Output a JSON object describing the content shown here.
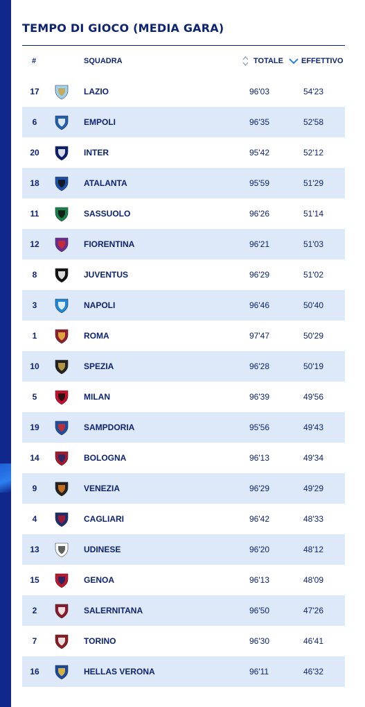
{
  "title": "TEMPO DI GIOCO (MEDIA GARA)",
  "headers": {
    "num": "#",
    "team": "SQUADRA",
    "total": "TOTALE",
    "effective": "EFFETTIVO"
  },
  "rows": [
    {
      "num": "17",
      "team": "LAZIO",
      "total": "96'03",
      "effective": "54'23",
      "crest": "lazio-crest-icon",
      "c1": "#9ed0f0",
      "c2": "#c8a44a"
    },
    {
      "num": "6",
      "team": "EMPOLI",
      "total": "96'35",
      "effective": "52'58",
      "crest": "empoli-crest-icon",
      "c1": "#1f5fae",
      "c2": "#ffffff"
    },
    {
      "num": "20",
      "team": "INTER",
      "total": "95'42",
      "effective": "52'12",
      "crest": "inter-crest-icon",
      "c1": "#0b1f6e",
      "c2": "#ffffff"
    },
    {
      "num": "18",
      "team": "ATALANTA",
      "total": "95'59",
      "effective": "51'29",
      "crest": "atalanta-crest-icon",
      "c1": "#1d4fa8",
      "c2": "#111111"
    },
    {
      "num": "11",
      "team": "SASSUOLO",
      "total": "96'26",
      "effective": "51'14",
      "crest": "sassuolo-crest-icon",
      "c1": "#16824a",
      "c2": "#111111"
    },
    {
      "num": "12",
      "team": "FIORENTINA",
      "total": "96'21",
      "effective": "51'03",
      "crest": "fiorentina-crest-icon",
      "c1": "#6a2c91",
      "c2": "#d42a2a"
    },
    {
      "num": "8",
      "team": "JUVENTUS",
      "total": "96'29",
      "effective": "51'02",
      "crest": "juventus-crest-icon",
      "c1": "#111111",
      "c2": "#ffffff"
    },
    {
      "num": "3",
      "team": "NAPOLI",
      "total": "96'46",
      "effective": "50'40",
      "crest": "napoli-crest-icon",
      "c1": "#1e88d8",
      "c2": "#ffffff"
    },
    {
      "num": "1",
      "team": "ROMA",
      "total": "97'47",
      "effective": "50'29",
      "crest": "roma-crest-icon",
      "c1": "#8e1f2f",
      "c2": "#f0bc42"
    },
    {
      "num": "10",
      "team": "SPEZIA",
      "total": "96'28",
      "effective": "50'19",
      "crest": "spezia-crest-icon",
      "c1": "#222222",
      "c2": "#c9a84a"
    },
    {
      "num": "5",
      "team": "MILAN",
      "total": "96'39",
      "effective": "49'56",
      "crest": "milan-crest-icon",
      "c1": "#c8102e",
      "c2": "#111111"
    },
    {
      "num": "19",
      "team": "SAMPDORIA",
      "total": "95'56",
      "effective": "49'43",
      "crest": "sampdoria-crest-icon",
      "c1": "#1b4fa0",
      "c2": "#d42a2a"
    },
    {
      "num": "14",
      "team": "BOLOGNA",
      "total": "96'13",
      "effective": "49'34",
      "crest": "bologna-crest-icon",
      "c1": "#a8182c",
      "c2": "#1a2b6d"
    },
    {
      "num": "9",
      "team": "VENEZIA",
      "total": "96'29",
      "effective": "49'29",
      "crest": "venezia-crest-icon",
      "c1": "#222222",
      "c2": "#e07a1f"
    },
    {
      "num": "4",
      "team": "CAGLIARI",
      "total": "96'42",
      "effective": "48'33",
      "crest": "cagliari-crest-icon",
      "c1": "#1b2f6e",
      "c2": "#b0152a"
    },
    {
      "num": "13",
      "team": "UDINESE",
      "total": "96'20",
      "effective": "48'12",
      "crest": "udinese-crest-icon",
      "c1": "#ffffff",
      "c2": "#444444"
    },
    {
      "num": "15",
      "team": "GENOA",
      "total": "96'13",
      "effective": "48'09",
      "crest": "genoa-crest-icon",
      "c1": "#c0152a",
      "c2": "#0f2a6a"
    },
    {
      "num": "2",
      "team": "SALERNITANA",
      "total": "96'50",
      "effective": "47'26",
      "crest": "salernitana-crest-icon",
      "c1": "#8a1a2a",
      "c2": "#ffffff"
    },
    {
      "num": "7",
      "team": "TORINO",
      "total": "96'30",
      "effective": "46'41",
      "crest": "torino-crest-icon",
      "c1": "#8a1c24",
      "c2": "#ffffff"
    },
    {
      "num": "16",
      "team": "HELLAS VERONA",
      "total": "96'11",
      "effective": "46'32",
      "crest": "hellas-verona-crest-icon",
      "c1": "#1a4aa0",
      "c2": "#f4c430"
    }
  ],
  "colors": {
    "text": "#0d2372",
    "alt_row": "#dde9f8",
    "side_bar": "#10278c",
    "sort_active": "#2c7ff0"
  }
}
